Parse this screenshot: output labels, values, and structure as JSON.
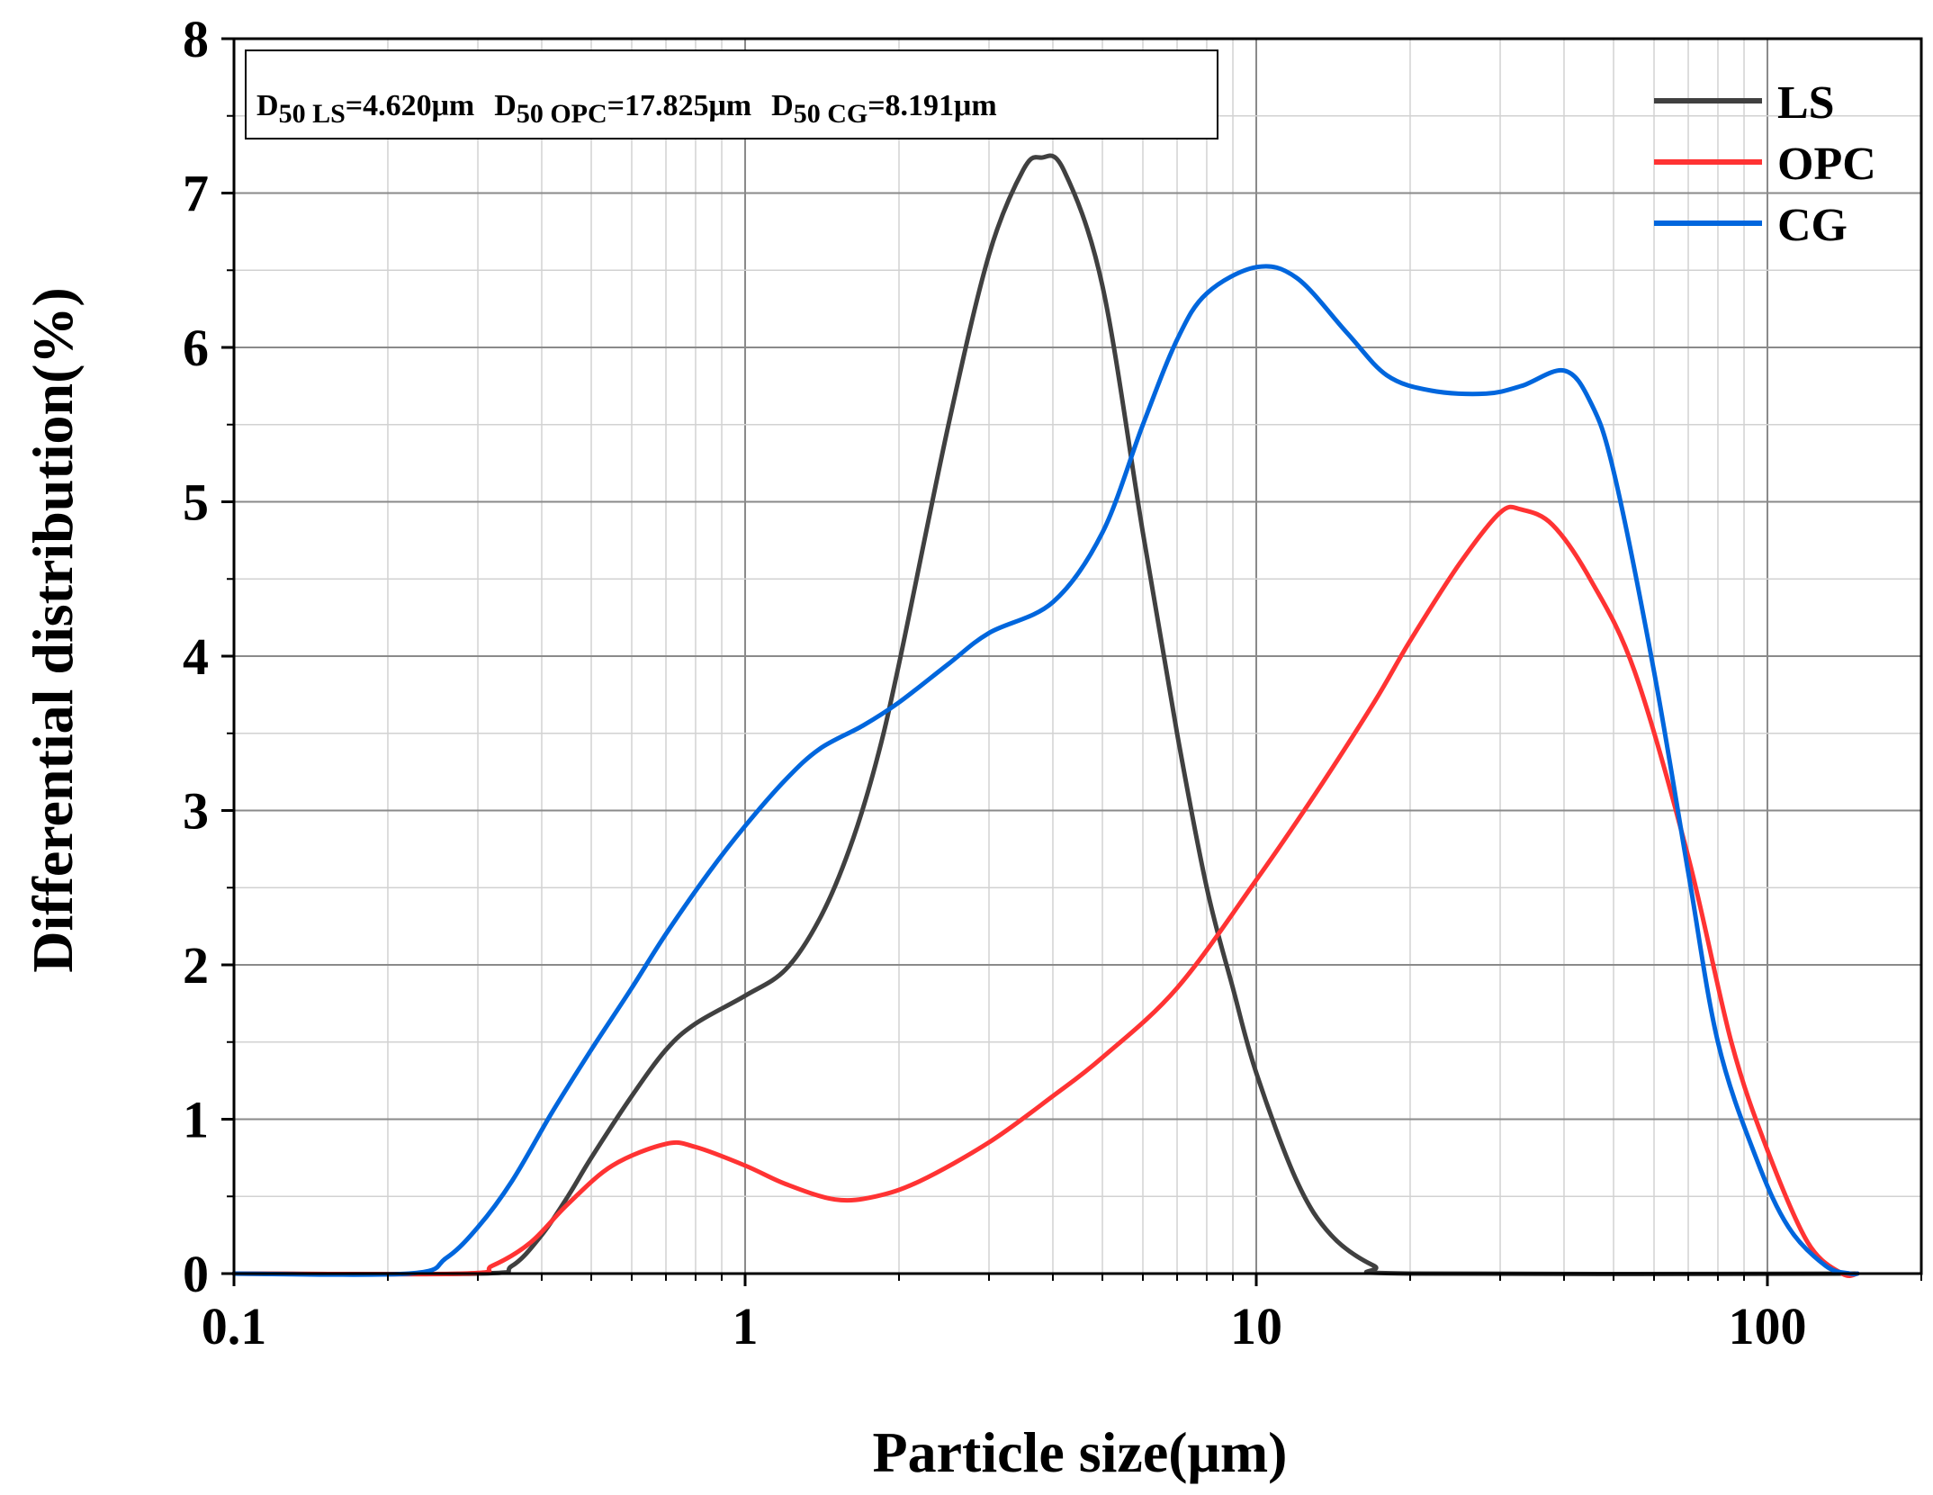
{
  "chart_data": {
    "type": "line",
    "title": "",
    "xlabel": "Particle size(μm)",
    "ylabel": "Differential distribution(%)",
    "xscale": "log",
    "xlim": [
      0.1,
      200
    ],
    "ylim": [
      0,
      8
    ],
    "x_ticks": [
      0.1,
      1,
      10,
      100
    ],
    "x_tick_labels": [
      "0.1",
      "1",
      "10",
      "100"
    ],
    "y_ticks": [
      0,
      1,
      2,
      3,
      4,
      5,
      6,
      7,
      8
    ],
    "y_tick_labels": [
      "0",
      "1",
      "2",
      "3",
      "4",
      "5",
      "6",
      "7",
      "8"
    ],
    "grid": true,
    "legend_position": "top-right",
    "annotation": {
      "items": [
        {
          "label": "D",
          "sub": "50 LS",
          "value": "=4.620μm"
        },
        {
          "label": "D",
          "sub": "50 OPC",
          "value": "=17.825μm"
        },
        {
          "label": "D",
          "sub": "50 CG",
          "value": "=8.191μm"
        }
      ]
    },
    "series": [
      {
        "name": "LS",
        "color": "#404040",
        "points": [
          [
            0.1,
            0
          ],
          [
            0.3,
            0
          ],
          [
            0.35,
            0.05
          ],
          [
            0.4,
            0.25
          ],
          [
            0.45,
            0.5
          ],
          [
            0.5,
            0.75
          ],
          [
            0.6,
            1.15
          ],
          [
            0.7,
            1.45
          ],
          [
            0.8,
            1.62
          ],
          [
            1.0,
            1.8
          ],
          [
            1.2,
            1.97
          ],
          [
            1.4,
            2.3
          ],
          [
            1.6,
            2.75
          ],
          [
            1.8,
            3.3
          ],
          [
            2.0,
            3.95
          ],
          [
            2.5,
            5.5
          ],
          [
            3.0,
            6.6
          ],
          [
            3.5,
            7.15
          ],
          [
            3.8,
            7.23
          ],
          [
            4.2,
            7.15
          ],
          [
            5.0,
            6.4
          ],
          [
            6.0,
            4.8
          ],
          [
            7.0,
            3.5
          ],
          [
            8.0,
            2.5
          ],
          [
            9.0,
            1.85
          ],
          [
            10.0,
            1.3
          ],
          [
            12.0,
            0.6
          ],
          [
            14.0,
            0.25
          ],
          [
            17.0,
            0.05
          ],
          [
            20.0,
            0
          ],
          [
            150.0,
            0
          ]
        ]
      },
      {
        "name": "OPC",
        "color": "#ff3333",
        "points": [
          [
            0.1,
            0
          ],
          [
            0.28,
            0
          ],
          [
            0.32,
            0.05
          ],
          [
            0.38,
            0.2
          ],
          [
            0.45,
            0.45
          ],
          [
            0.55,
            0.7
          ],
          [
            0.7,
            0.84
          ],
          [
            0.8,
            0.82
          ],
          [
            1.0,
            0.7
          ],
          [
            1.2,
            0.58
          ],
          [
            1.5,
            0.48
          ],
          [
            1.8,
            0.5
          ],
          [
            2.2,
            0.6
          ],
          [
            3.0,
            0.85
          ],
          [
            4.0,
            1.15
          ],
          [
            5.0,
            1.4
          ],
          [
            7.0,
            1.85
          ],
          [
            10.0,
            2.55
          ],
          [
            13.0,
            3.1
          ],
          [
            17.0,
            3.7
          ],
          [
            20.0,
            4.1
          ],
          [
            25.0,
            4.6
          ],
          [
            30.0,
            4.93
          ],
          [
            33.0,
            4.95
          ],
          [
            38.0,
            4.85
          ],
          [
            45.0,
            4.5
          ],
          [
            55.0,
            3.9
          ],
          [
            70.0,
            2.7
          ],
          [
            85.0,
            1.5
          ],
          [
            100.0,
            0.8
          ],
          [
            120.0,
            0.2
          ],
          [
            140.0,
            0
          ],
          [
            150.0,
            0
          ]
        ]
      },
      {
        "name": "CG",
        "color": "#0066dd",
        "points": [
          [
            0.1,
            0
          ],
          [
            0.22,
            0
          ],
          [
            0.26,
            0.1
          ],
          [
            0.3,
            0.3
          ],
          [
            0.35,
            0.6
          ],
          [
            0.42,
            1.05
          ],
          [
            0.5,
            1.45
          ],
          [
            0.6,
            1.85
          ],
          [
            0.7,
            2.2
          ],
          [
            0.85,
            2.6
          ],
          [
            1.0,
            2.9
          ],
          [
            1.2,
            3.2
          ],
          [
            1.4,
            3.4
          ],
          [
            1.7,
            3.55
          ],
          [
            2.0,
            3.7
          ],
          [
            2.5,
            3.95
          ],
          [
            3.0,
            4.15
          ],
          [
            4.0,
            4.35
          ],
          [
            5.0,
            4.8
          ],
          [
            6.0,
            5.5
          ],
          [
            7.0,
            6.05
          ],
          [
            8.0,
            6.35
          ],
          [
            10.0,
            6.52
          ],
          [
            12.0,
            6.45
          ],
          [
            15.0,
            6.1
          ],
          [
            18.0,
            5.82
          ],
          [
            22.0,
            5.72
          ],
          [
            28.0,
            5.7
          ],
          [
            33.0,
            5.75
          ],
          [
            40.0,
            5.85
          ],
          [
            45.0,
            5.65
          ],
          [
            50.0,
            5.2
          ],
          [
            60.0,
            3.9
          ],
          [
            70.0,
            2.6
          ],
          [
            80.0,
            1.5
          ],
          [
            95.0,
            0.75
          ],
          [
            110.0,
            0.3
          ],
          [
            130.0,
            0.05
          ],
          [
            145.0,
            0
          ],
          [
            150.0,
            0
          ]
        ]
      }
    ]
  }
}
